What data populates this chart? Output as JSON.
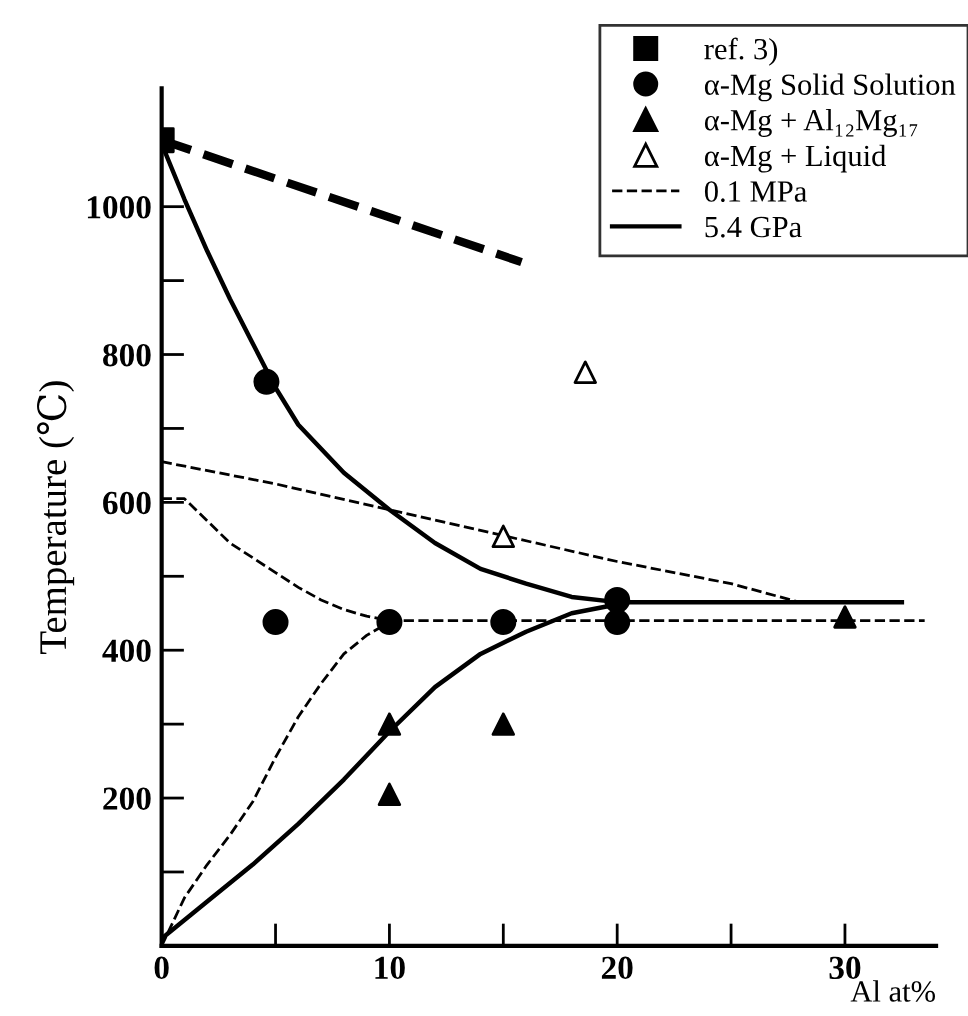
{
  "chart_data": {
    "type": "line",
    "ylabel": "Temperature (℃)",
    "xlabel": "Al at%",
    "xlim": [
      0,
      34
    ],
    "ylim": [
      0,
      1160
    ],
    "xticks": [
      0,
      {
        "value": 5,
        "label": null
      },
      10,
      {
        "value": 15,
        "label": null
      },
      20,
      {
        "value": 25,
        "label": null
      },
      30
    ],
    "yticks": [
      {
        "value": 100,
        "label": null
      },
      200,
      {
        "value": 300,
        "label": null
      },
      400,
      {
        "value": 500,
        "label": null
      },
      600,
      {
        "value": 700,
        "label": null
      },
      800,
      {
        "value": 900,
        "label": null
      },
      1000
    ],
    "grid": false,
    "legend": "top right",
    "series": [
      {
        "name": "ref. 3)",
        "type": "scatter",
        "marker": "square",
        "color": "#000000",
        "x": [
          0
        ],
        "values": [
          1090
        ]
      },
      {
        "name": "α-Mg Solid Solution",
        "type": "scatter",
        "marker": "circle",
        "color": "#000000",
        "x": [
          4.6,
          5,
          10,
          15,
          20,
          20
        ],
        "values": [
          763,
          438,
          438,
          438,
          468,
          438
        ]
      },
      {
        "name": "α-Mg + Al₁₂Mg₁₇",
        "type": "scatter",
        "marker": "triangle",
        "color": "#000000",
        "x": [
          10,
          10,
          15,
          30
        ],
        "values": [
          300,
          205,
          300,
          445
        ]
      },
      {
        "name": "α-Mg + Liquid",
        "type": "scatter",
        "marker": "triangle",
        "color": "#ffffff",
        "x": [
          15,
          18.6
        ],
        "values": [
          554,
          776
        ]
      },
      {
        "name": "0.1 MPa",
        "line_style": "dashed",
        "color": "#000000",
        "x": [
          0,
          5,
          10,
          15,
          20,
          25,
          28
        ],
        "values": [
          655,
          625,
          590,
          555,
          520,
          490,
          465
        ]
      },
      {
        "line_style": "dashed",
        "color": "#000000",
        "x": [
          0,
          1,
          2,
          3,
          4,
          5,
          6,
          7,
          8,
          9,
          10,
          33.5
        ],
        "values": [
          605,
          605,
          575,
          545,
          525,
          505,
          485,
          468,
          455,
          446,
          440,
          440
        ]
      },
      {
        "line_style": "dashed",
        "color": "#000000",
        "x": [
          0,
          1,
          2,
          3,
          4,
          5,
          6,
          7,
          8,
          9,
          10
        ],
        "values": [
          0,
          65,
          110,
          150,
          195,
          255,
          310,
          355,
          395,
          420,
          438
        ]
      },
      {
        "line_style": "dashed",
        "color": "#000000",
        "x": [
          0,
          15.8
        ],
        "values": [
          1090,
          925
        ]
      },
      {
        "name": "5.4 GPa",
        "line_style": "solid",
        "color": "#000000",
        "x": [
          0,
          1,
          2,
          3,
          4,
          5,
          6,
          8,
          10,
          12,
          14,
          16,
          18,
          20,
          32.5
        ],
        "values": [
          1085,
          1010,
          940,
          875,
          815,
          755,
          705,
          640,
          590,
          545,
          510,
          490,
          472,
          465,
          465
        ]
      },
      {
        "line_style": "solid",
        "color": "#000000",
        "x": [
          0,
          2,
          4,
          6,
          8,
          10,
          12,
          14,
          16,
          18,
          20
        ],
        "values": [
          10,
          60,
          110,
          165,
          225,
          290,
          350,
          395,
          425,
          450,
          462
        ]
      }
    ]
  }
}
